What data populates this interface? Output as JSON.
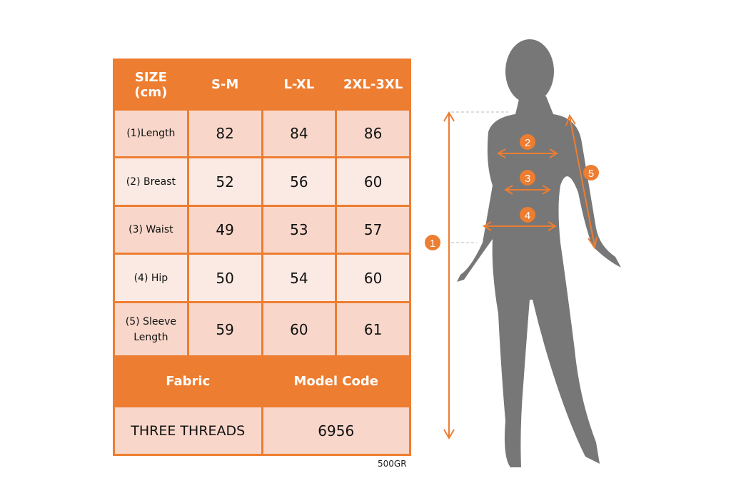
{
  "table": {
    "header": {
      "size": "SIZE",
      "unit": "(cm)",
      "columns": [
        "S-M",
        "L-XL",
        "2XL-3XL"
      ]
    },
    "rows": [
      {
        "label": "(1)Length",
        "values": [
          "82",
          "84",
          "86"
        ]
      },
      {
        "label": "(2) Breast",
        "values": [
          "52",
          "56",
          "60"
        ]
      },
      {
        "label": "(3) Waist",
        "values": [
          "49",
          "53",
          "57"
        ]
      },
      {
        "label": "(4) Hip",
        "values": [
          "50",
          "54",
          "60"
        ]
      },
      {
        "label": "(5) Sleeve Length",
        "values": [
          "59",
          "60",
          "61"
        ]
      }
    ],
    "fabric_label": "Fabric",
    "model_code_label": "Model Code",
    "fabric_value": "THREE THREADS",
    "model_code_value": "6956"
  },
  "weight_note": "500GR",
  "figure": {
    "markers": [
      "1",
      "2",
      "3",
      "4",
      "5"
    ]
  },
  "colors": {
    "accent": "#ED7D31",
    "row_dark": "#F8D7CA",
    "row_light": "#FBEAE3",
    "silhouette": "#777777"
  }
}
